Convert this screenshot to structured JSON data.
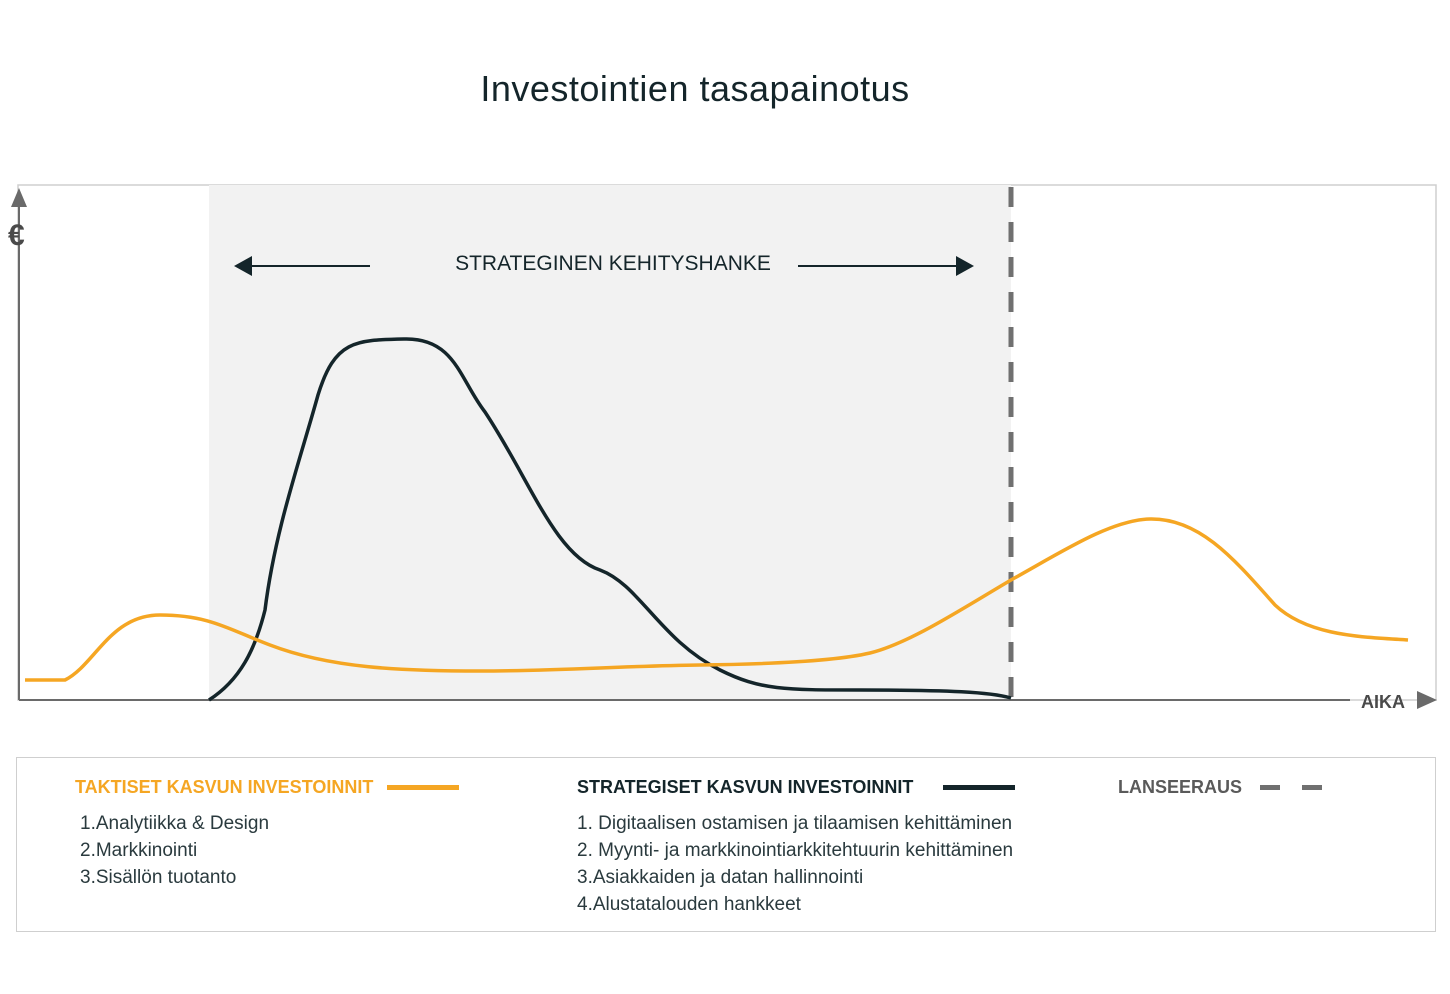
{
  "title": "Investointien tasapainotus",
  "colors": {
    "tactical": "#F5A623",
    "strategic": "#14252A",
    "launch": "#707070",
    "phase_bg": "#F2F2F2",
    "frame": "#CFCFCF"
  },
  "diagram": {
    "y_axis_label": "€",
    "x_axis_label": "AIKA",
    "phase_label": "STRATEGINEN KEHITYSHANKE"
  },
  "legend": {
    "tactical": {
      "title": "TAKTISET KASVUN INVESTOINNIT",
      "items": [
        "1.Analytiikka & Design",
        "2.Markkinointi",
        "3.Sisällön tuotanto"
      ]
    },
    "strategic": {
      "title": "STRATEGISET KASVUN INVESTOINNIT",
      "items": [
        "1. Digitaalisen ostamisen ja tilaamisen kehittäminen",
        "2. Myynti- ja markkinointiarkkitehtuurin kehittäminen",
        "3.Asiakkaiden ja datan hallinnointi",
        "4.Alustatalouden hankkeet"
      ]
    },
    "launch": {
      "title": "LANSEERAUS"
    }
  }
}
